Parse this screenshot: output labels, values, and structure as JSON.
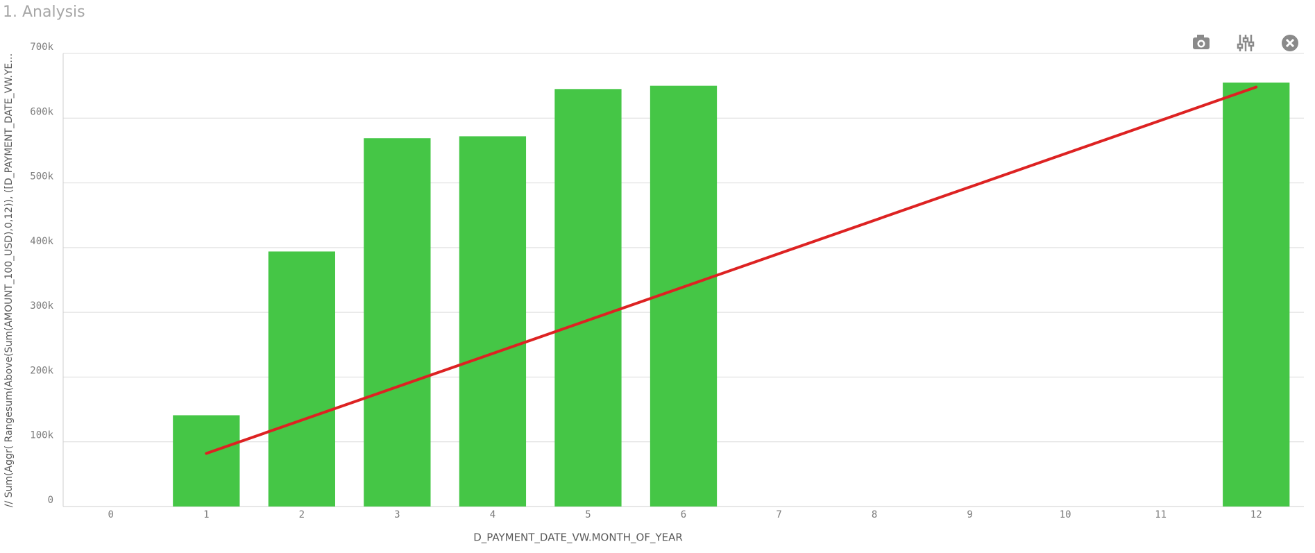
{
  "chart_data": {
    "type": "bar",
    "title": "1. Analysis",
    "x_label": "D_PAYMENT_DATE_VW.MONTH_OF_YEAR",
    "y_label": "// Sum(Aggr( Rangesum(Above(Sum(AMOUNT_100_USD),0,12)), ([D_PAYMENT_DATE_VW.YE…",
    "x": [
      0,
      1,
      2,
      3,
      4,
      5,
      6,
      7,
      8,
      9,
      10,
      11,
      12
    ],
    "values": [
      null,
      141000,
      394000,
      569000,
      572000,
      645000,
      650000,
      null,
      null,
      null,
      null,
      null,
      655000
    ],
    "color": "#45c646",
    "trend": {
      "x": [
        1,
        12
      ],
      "values": [
        82000,
        648000
      ],
      "color": "#dd2222"
    },
    "xlim": [
      -0.5,
      12.5
    ],
    "xticks": [
      0,
      1,
      2,
      3,
      4,
      5,
      6,
      7,
      8,
      9,
      10,
      11,
      12
    ],
    "ylim": [
      0,
      700000
    ],
    "yticks": [
      {
        "value": 0,
        "label": "0"
      },
      {
        "value": 100000,
        "label": "100k"
      },
      {
        "value": 200000,
        "label": "200k"
      },
      {
        "value": 300000,
        "label": "300k"
      },
      {
        "value": 400000,
        "label": "400k"
      },
      {
        "value": 500000,
        "label": "500k"
      },
      {
        "value": 600000,
        "label": "600k"
      },
      {
        "value": 700000,
        "label": "700k"
      }
    ],
    "grid": true
  }
}
